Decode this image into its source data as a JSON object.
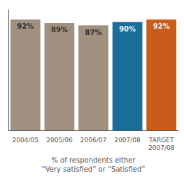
{
  "chart_data": {
    "type": "bar",
    "categories": [
      "2004/05",
      "2005/06",
      "2006/07",
      "2007/08",
      "TARGET\n2007/08"
    ],
    "values": [
      92,
      89,
      87,
      90,
      92
    ],
    "colors": [
      "#a09080",
      "#a09080",
      "#a09080",
      "#1a6f9a",
      "#c95c1a"
    ],
    "value_labels": [
      "92%",
      "89%",
      "87%",
      "90%",
      "92%"
    ],
    "data_labels": true,
    "xlabel": "% of respondents either\n“Very satisfied” or “Satisfied”",
    "ylim": [
      0,
      100
    ],
    "tick_labels": "x",
    "grid": false
  }
}
